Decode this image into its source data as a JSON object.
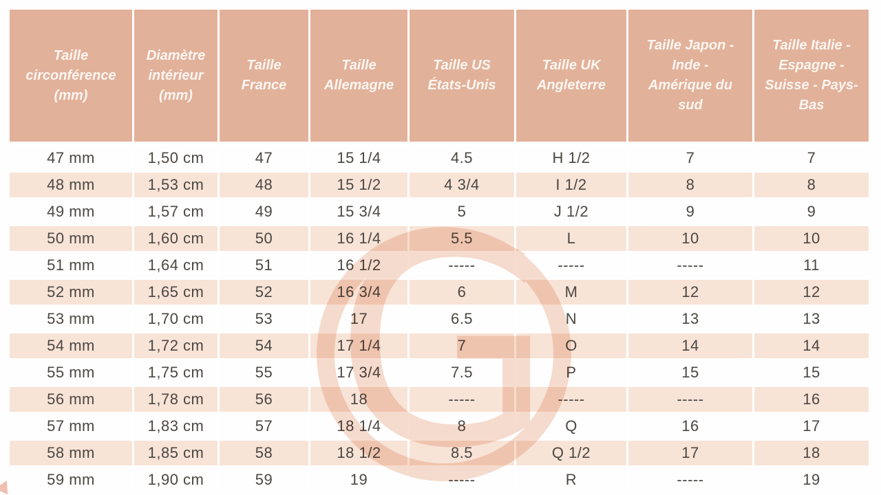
{
  "chart_data": {
    "type": "table",
    "title": "",
    "columns": [
      {
        "label": "Taille circonférence (mm)",
        "display": "Taille\ncirconférence\n(mm)"
      },
      {
        "label": "Diamètre intérieur (mm)",
        "display": "Diamètre\nintérieur\n(mm)"
      },
      {
        "label": "Taille France",
        "display": "Taille\nFrance"
      },
      {
        "label": "Taille Allemagne",
        "display": "Taille\nAllemagne"
      },
      {
        "label": "Taille US États-Unis",
        "display": "Taille US\nÉtats-Unis"
      },
      {
        "label": "Taille UK Angleterre",
        "display": "Taille UK\nAngleterre"
      },
      {
        "label": "Taille Japon - Inde - Amérique du sud",
        "display": "Taille Japon -\nInde -\nAmérique du\nsud"
      },
      {
        "label": "Taille Italie - Espagne - Suisse - Pays-Bas",
        "display": "Taille Italie -\nEspagne -\nSuisse - Pays-\nBas"
      }
    ],
    "rows": [
      [
        "47 mm",
        "1,50 cm",
        "47",
        "15 1/4",
        "4.5",
        "H 1/2",
        "7",
        "7"
      ],
      [
        "48 mm",
        "1,53 cm",
        "48",
        "15 1/2",
        "4 3/4",
        "I 1/2",
        "8",
        "8"
      ],
      [
        "49 mm",
        "1,57 cm",
        "49",
        "15 3/4",
        "5",
        "J 1/2",
        "9",
        "9"
      ],
      [
        "50 mm",
        "1,60 cm",
        "50",
        "16 1/4",
        "5.5",
        "L",
        "10",
        "10"
      ],
      [
        "51 mm",
        "1,64 cm",
        "51",
        "16 1/2",
        "-----",
        "-----",
        "-----",
        "11"
      ],
      [
        "52 mm",
        "1,65 cm",
        "52",
        "16 3/4",
        "6",
        "M",
        "12",
        "12"
      ],
      [
        "53 mm",
        "1,70 cm",
        "53",
        "17",
        "6.5",
        "N",
        "13",
        "13"
      ],
      [
        "54 mm",
        "1,72 cm",
        "54",
        "17 1/4",
        "7",
        "O",
        "14",
        "14"
      ],
      [
        "55 mm",
        "1,75 cm",
        "55",
        "17 3/4",
        "7.5",
        "P",
        "15",
        "15"
      ],
      [
        "56 mm",
        "1,78 cm",
        "56",
        "18",
        "-----",
        "-----",
        "-----",
        "16"
      ],
      [
        "57 mm",
        "1,83 cm",
        "57",
        "18 1/4",
        "8",
        "Q",
        "16",
        "17"
      ],
      [
        "58 mm",
        "1,85 cm",
        "58",
        "18 1/2",
        "8.5",
        "Q 1/2",
        "17",
        "18"
      ],
      [
        "59 mm",
        "1,90 cm",
        "59",
        "19",
        "-----",
        "R",
        "-----",
        "19"
      ]
    ]
  },
  "watermark": {
    "letter": "G"
  },
  "colors": {
    "header_bg": "#e2b19a",
    "header_text": "#fcf6f1",
    "row_bg": "#fefefe",
    "row_alt_bg": "#f8e3d7",
    "body_text": "#4b4742",
    "watermark": "#f6dcce"
  }
}
